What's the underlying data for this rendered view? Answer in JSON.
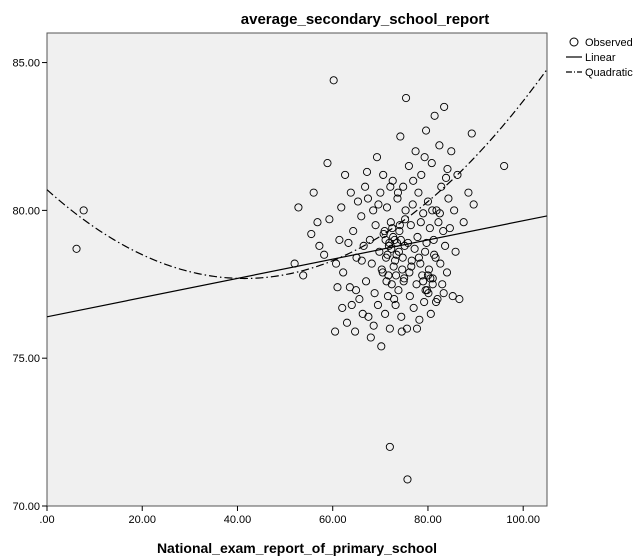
{
  "chart_data": {
    "type": "scatter",
    "title": "average_secondary_school_report",
    "xlabel": "National_exam_report_of_primary_school",
    "ylabel": "",
    "xlim": [
      0,
      105
    ],
    "ylim": [
      70,
      86
    ],
    "xticks": [
      0,
      20,
      40,
      60,
      80,
      100
    ],
    "xtick_labels": [
      ".00",
      "20.00",
      "40.00",
      "60.00",
      "80.00",
      "100.00"
    ],
    "yticks": [
      70,
      75,
      80,
      85
    ],
    "ytick_labels": [
      "70.00",
      "75.00",
      "80.00",
      "85.00"
    ],
    "grid": false,
    "legend_position": "top-right",
    "legend": [
      "Observed",
      "Linear",
      "Quadratic"
    ],
    "colors": {
      "plot_bg": "#f0f0f0",
      "marker": "#000000",
      "line": "#000000"
    },
    "series": [
      {
        "name": "Observed",
        "kind": "scatter",
        "points": [
          [
            6.2,
            78.7
          ],
          [
            7.7,
            80.0
          ],
          [
            52.0,
            78.2
          ],
          [
            52.8,
            80.1
          ],
          [
            53.8,
            77.8
          ],
          [
            55.5,
            79.2
          ],
          [
            56.0,
            80.6
          ],
          [
            56.8,
            79.6
          ],
          [
            57.2,
            78.8
          ],
          [
            58.2,
            78.5
          ],
          [
            58.9,
            81.6
          ],
          [
            59.3,
            79.7
          ],
          [
            60.2,
            84.4
          ],
          [
            60.5,
            75.9
          ],
          [
            60.7,
            78.2
          ],
          [
            61.4,
            79.0
          ],
          [
            61.8,
            80.1
          ],
          [
            62.2,
            77.9
          ],
          [
            62.6,
            81.2
          ],
          [
            63.0,
            76.2
          ],
          [
            63.3,
            78.9
          ],
          [
            63.6,
            77.4
          ],
          [
            64.0,
            76.8
          ],
          [
            64.3,
            79.3
          ],
          [
            64.7,
            75.9
          ],
          [
            65.0,
            78.4
          ],
          [
            65.3,
            80.3
          ],
          [
            65.6,
            77.0
          ],
          [
            66.0,
            79.8
          ],
          [
            66.3,
            76.5
          ],
          [
            66.5,
            78.8
          ],
          [
            66.8,
            80.8
          ],
          [
            67.0,
            77.6
          ],
          [
            67.2,
            81.3
          ],
          [
            67.5,
            76.4
          ],
          [
            67.8,
            79.0
          ],
          [
            68.0,
            75.7
          ],
          [
            68.2,
            78.2
          ],
          [
            68.5,
            80.0
          ],
          [
            68.8,
            77.2
          ],
          [
            69.0,
            79.5
          ],
          [
            69.3,
            81.8
          ],
          [
            69.5,
            76.8
          ],
          [
            69.8,
            78.6
          ],
          [
            70.0,
            80.6
          ],
          [
            70.2,
            75.4
          ],
          [
            70.5,
            77.9
          ],
          [
            70.7,
            79.2
          ],
          [
            71.0,
            76.5
          ],
          [
            71.2,
            78.4
          ],
          [
            71.4,
            80.1
          ],
          [
            71.6,
            77.1
          ],
          [
            71.8,
            78.8
          ],
          [
            72.0,
            76.0
          ],
          [
            72.2,
            79.6
          ],
          [
            72.4,
            77.5
          ],
          [
            72.6,
            81.0
          ],
          [
            72.8,
            78.1
          ],
          [
            73.0,
            79.0
          ],
          [
            73.2,
            76.8
          ],
          [
            73.4,
            78.5
          ],
          [
            73.6,
            80.4
          ],
          [
            73.8,
            77.3
          ],
          [
            74.0,
            79.3
          ],
          [
            74.2,
            82.5
          ],
          [
            74.4,
            76.4
          ],
          [
            74.6,
            78.0
          ],
          [
            74.8,
            80.8
          ],
          [
            75.0,
            77.7
          ],
          [
            75.2,
            79.7
          ],
          [
            75.4,
            83.8
          ],
          [
            75.6,
            76.0
          ],
          [
            75.8,
            78.9
          ],
          [
            76.0,
            81.5
          ],
          [
            76.2,
            77.1
          ],
          [
            76.4,
            79.5
          ],
          [
            76.6,
            78.3
          ],
          [
            76.8,
            80.2
          ],
          [
            77.0,
            76.7
          ],
          [
            77.2,
            78.7
          ],
          [
            77.4,
            82.0
          ],
          [
            77.6,
            77.5
          ],
          [
            77.8,
            79.1
          ],
          [
            78.0,
            80.6
          ],
          [
            78.2,
            76.3
          ],
          [
            78.4,
            78.2
          ],
          [
            78.6,
            81.2
          ],
          [
            78.8,
            77.8
          ],
          [
            79.0,
            79.9
          ],
          [
            79.2,
            76.9
          ],
          [
            79.4,
            78.6
          ],
          [
            79.6,
            82.7
          ],
          [
            79.8,
            77.3
          ],
          [
            80.0,
            80.3
          ],
          [
            80.2,
            78.0
          ],
          [
            80.4,
            79.4
          ],
          [
            80.6,
            76.5
          ],
          [
            80.8,
            81.6
          ],
          [
            81.0,
            77.7
          ],
          [
            81.2,
            79.0
          ],
          [
            81.4,
            83.2
          ],
          [
            81.6,
            78.4
          ],
          [
            81.8,
            80.0
          ],
          [
            82.0,
            77.0
          ],
          [
            82.2,
            79.6
          ],
          [
            82.4,
            82.2
          ],
          [
            82.6,
            78.2
          ],
          [
            82.8,
            80.8
          ],
          [
            83.0,
            77.5
          ],
          [
            83.2,
            79.3
          ],
          [
            83.4,
            83.5
          ],
          [
            83.6,
            78.8
          ],
          [
            83.8,
            81.1
          ],
          [
            84.0,
            77.9
          ],
          [
            84.3,
            80.4
          ],
          [
            84.6,
            79.4
          ],
          [
            84.9,
            82.0
          ],
          [
            85.2,
            77.1
          ],
          [
            85.5,
            80.0
          ],
          [
            85.8,
            78.6
          ],
          [
            86.2,
            81.2
          ],
          [
            86.6,
            77.0
          ],
          [
            87.5,
            79.6
          ],
          [
            88.5,
            80.6
          ],
          [
            89.2,
            82.6
          ],
          [
            89.6,
            80.2
          ],
          [
            96.0,
            81.5
          ],
          [
            61.0,
            77.4
          ],
          [
            62.0,
            76.7
          ],
          [
            63.8,
            80.6
          ],
          [
            64.9,
            77.3
          ],
          [
            66.1,
            78.3
          ],
          [
            67.4,
            80.4
          ],
          [
            68.6,
            76.1
          ],
          [
            69.6,
            80.2
          ],
          [
            70.6,
            81.2
          ],
          [
            71.3,
            77.6
          ],
          [
            72.1,
            80.8
          ],
          [
            72.9,
            77.0
          ],
          [
            73.7,
            80.6
          ],
          [
            74.5,
            75.9
          ],
          [
            75.3,
            80.0
          ],
          [
            76.1,
            77.9
          ],
          [
            76.9,
            81.0
          ],
          [
            77.7,
            76.0
          ],
          [
            78.5,
            79.6
          ],
          [
            79.3,
            81.8
          ],
          [
            80.1,
            77.2
          ],
          [
            80.9,
            80.0
          ],
          [
            81.7,
            76.9
          ],
          [
            82.5,
            79.9
          ],
          [
            83.3,
            77.2
          ],
          [
            84.1,
            81.4
          ],
          [
            71.1,
            79.0
          ],
          [
            71.9,
            78.9
          ],
          [
            72.7,
            79.1
          ],
          [
            73.5,
            78.9
          ],
          [
            74.3,
            79.0
          ],
          [
            75.1,
            78.8
          ],
          [
            71.5,
            78.5
          ],
          [
            72.3,
            78.7
          ],
          [
            73.1,
            78.3
          ],
          [
            73.9,
            78.6
          ],
          [
            74.7,
            78.4
          ],
          [
            70.9,
            79.3
          ],
          [
            72.5,
            79.4
          ],
          [
            74.1,
            79.5
          ],
          [
            70.3,
            78.0
          ],
          [
            71.7,
            77.8
          ],
          [
            73.3,
            77.8
          ],
          [
            74.9,
            77.6
          ],
          [
            76.5,
            78.1
          ],
          [
            78.1,
            78.4
          ],
          [
            79.7,
            78.9
          ],
          [
            81.3,
            78.5
          ],
          [
            79.0,
            77.6
          ],
          [
            80.0,
            77.8
          ],
          [
            81.0,
            77.5
          ],
          [
            79.5,
            77.3
          ],
          [
            80.5,
            77.7
          ],
          [
            72.0,
            72.0
          ],
          [
            75.7,
            70.9
          ]
        ]
      },
      {
        "name": "Linear",
        "kind": "line",
        "intercept": 76.4,
        "slope": 0.0325
      },
      {
        "name": "Quadratic",
        "kind": "curve",
        "a": 80.7,
        "b": -0.145,
        "c": 0.00175
      }
    ]
  }
}
